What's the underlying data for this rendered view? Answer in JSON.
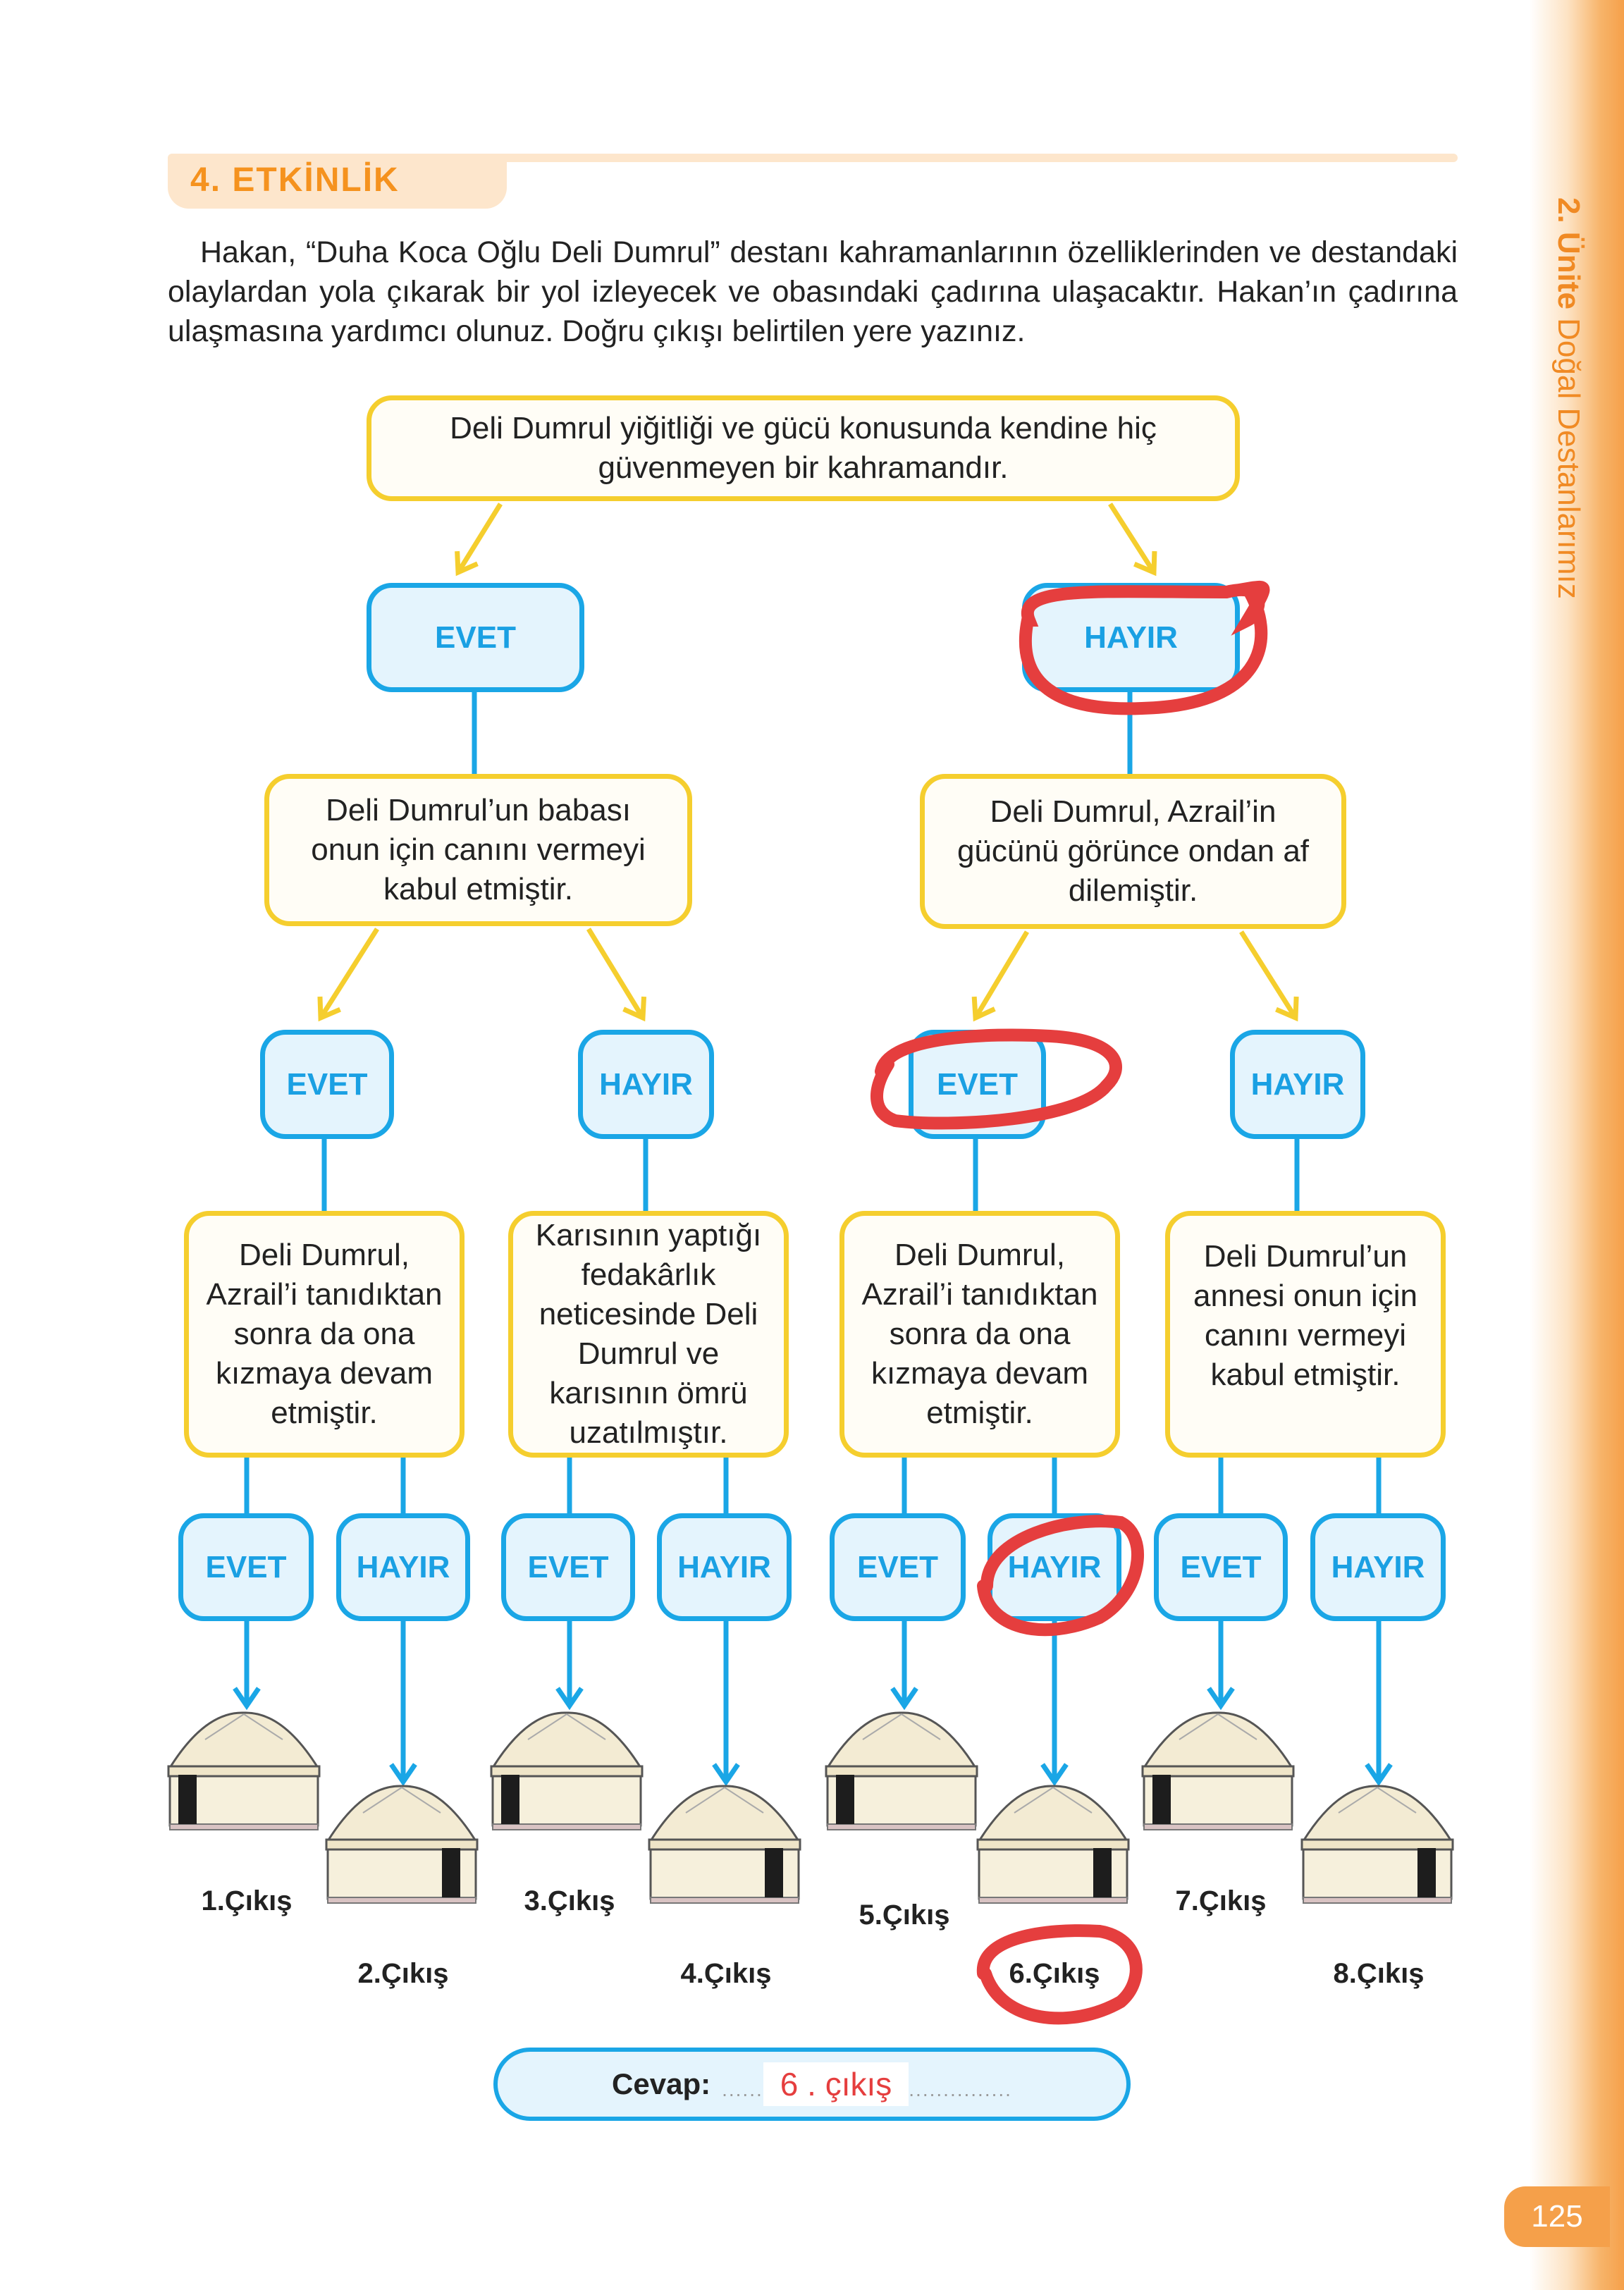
{
  "side_title": {
    "unit": "2. Ünite",
    "name": "Doğal Destanlarımız"
  },
  "page_number": "125",
  "activity_title": "4. ETKİNLİK",
  "instructions": "Hakan, “Duha Koca Oğlu Deli Dumrul” destanı kahramanlarının özelliklerinden ve destandaki olaylardan yola çıkarak bir yol izleyecek ve obasındaki çadırına ulaşacaktır. Hakan’ın çadırına ulaşmasına yardımcı olunuz. Doğru çıkışı belirtilen yere yazınız.",
  "tree": {
    "root": "Deli Dumrul yiğitliği ve gücü konusunda kendine hiç güvenmeyen bir kahramandır.",
    "yes": "EVET",
    "no": "HAYIR",
    "level1": [
      "Deli Dumrul’un babası onun için canını vermeyi kabul etmiştir.",
      "Deli Dumrul, Azrail’in gücünü görünce ondan af dilemiştir."
    ],
    "level2": [
      "Deli Dumrul, Azrail’i tanıdıktan sonra da ona kızmaya devam etmiştir.",
      "Karısının yaptığı fedakârlık neticesinde Deli Dumrul ve karısının ömrü uzatılmıştır.",
      "Deli Dumrul, Azrail’i tanıdıktan sonra da ona kızmaya devam etmiştir.",
      "Deli Dumrul’un annesi onun için canını vermeyi kabul etmiştir."
    ],
    "exits": [
      "1.Çıkış",
      "2.Çıkış",
      "3.Çıkış",
      "4.Çıkış",
      "5.Çıkış",
      "6.Çıkış",
      "7.Çıkış",
      "8.Çıkış"
    ]
  },
  "answer": {
    "label": "Cevap:",
    "value": "6 . çıkış"
  },
  "colors": {
    "yellow": "#F5CE2E",
    "blue": "#1AA6E6",
    "orange": "#F5921E",
    "annotation_red": "#E53E3E"
  }
}
